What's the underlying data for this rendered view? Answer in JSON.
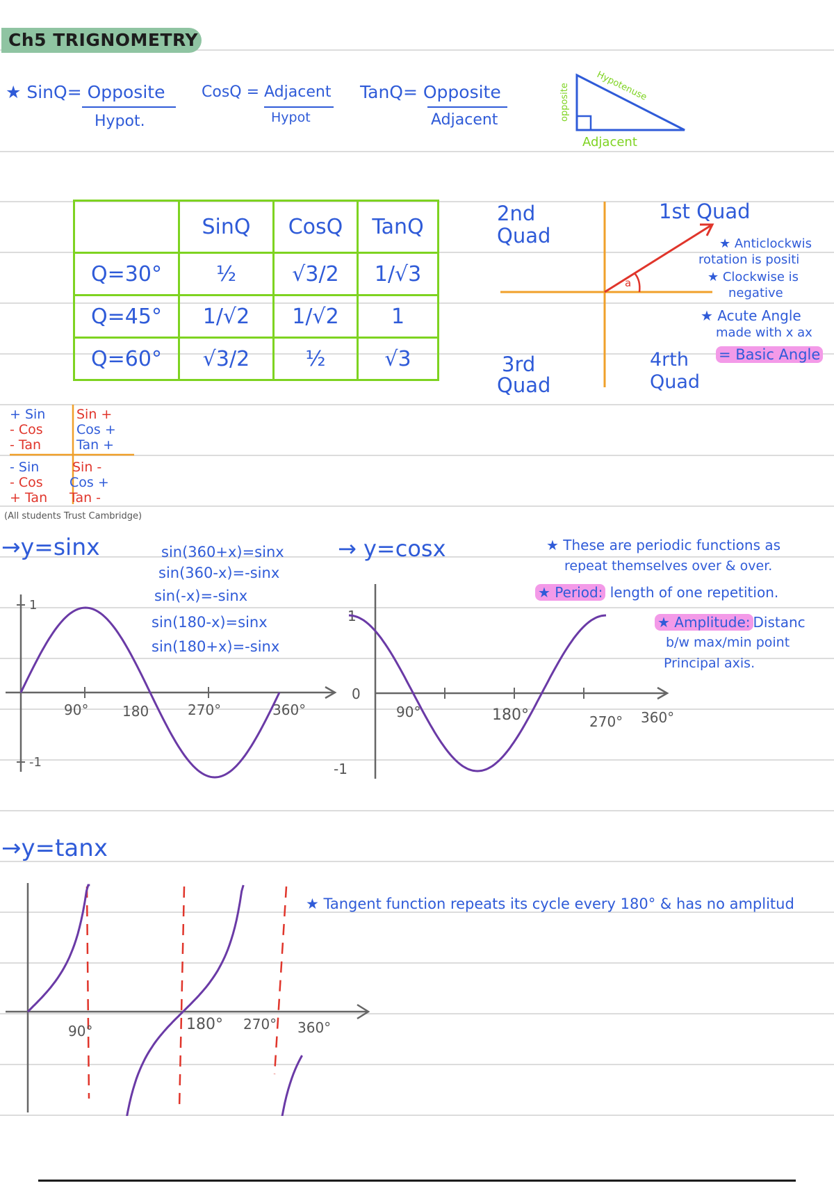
{
  "title": "Ch5 TRIGNOMETRY",
  "ratios": {
    "sin": {
      "lhs": "★ SinQ= Opposite",
      "den": "Hypot."
    },
    "cos": {
      "lhs": "CosQ = Adjacent",
      "den": "Hypot"
    },
    "tan": {
      "lhs": "TanQ= Opposite",
      "den": "Adjacent"
    }
  },
  "triangle": {
    "opposite": "opposite",
    "hypotenuse": "Hypotenuse",
    "adjacent": "Adjacent"
  },
  "table": {
    "headers": [
      "",
      "SinQ",
      "CosQ",
      "TanQ"
    ],
    "rows": [
      [
        "Q=30°",
        "½",
        "√3/2",
        "1/√3"
      ],
      [
        "Q=45°",
        "1/√2",
        "1/√2",
        "1"
      ],
      [
        "Q=60°",
        "√3/2",
        "½",
        "√3"
      ]
    ]
  },
  "quadrants": {
    "q1": "1st Quad",
    "q2a": "2nd",
    "q2b": "Quad",
    "q3a": "3rd",
    "q3b": "Quad",
    "q4a": "4rth",
    "q4b": "Quad",
    "angle": "a",
    "note1a": "★ Anticlockwis",
    "note1b": "rotation is positi",
    "note2a": "★ Clockwise is",
    "note2b": "negative",
    "note3a": "★ Acute Angle",
    "note3b": "made with x ax",
    "basic": "= Basic Angle"
  },
  "signs": {
    "q2": [
      "+ Sin",
      "- Cos",
      "- Tan"
    ],
    "q1": [
      "Sin +",
      "Cos +",
      "Tan +"
    ],
    "q3": [
      "- Sin",
      "- Cos",
      "+ Tan"
    ],
    "q4": [
      "Sin -",
      "Cos +",
      "Tan -"
    ],
    "mnemonic": "(All students Trust Cambridge)"
  },
  "sin_graph": {
    "heading": "→y=sinx",
    "identities": [
      "sin(360+x)=sinx",
      "sin(360-x)=-sinx",
      "sin(-x)=-sinx",
      "sin(180-x)=sinx",
      "sin(180+x)=-sinx"
    ],
    "y_top": "1",
    "y_bottom": "-1",
    "ticks": [
      "90°",
      "180",
      "270°",
      "360°"
    ]
  },
  "cos_graph": {
    "heading": "→ y=cosx",
    "y_top": "1",
    "y_zero": "0",
    "y_bottom": "-1",
    "ticks": [
      "90°",
      "180°",
      "270°",
      "360°"
    ]
  },
  "notes": {
    "n1a": "★ These are periodic functions as",
    "n1b": "repeat themselves over & over.",
    "n2label": "★ Period:",
    "n2text": "length of one repetition.",
    "n3label": "★ Amplitude:",
    "n3text": "Distanc",
    "n3b": "b/w max/min point",
    "n3c": "Principal axis."
  },
  "tan_graph": {
    "heading": "→y=tanx",
    "ticks": [
      "90°",
      "180°",
      "270°",
      "360°"
    ],
    "note": "★ Tangent function repeats its cycle every 180° & has no amplitud"
  },
  "colors": {
    "blue": "#2f5bd8",
    "purple": "#6a3aa6",
    "green": "#7ed321",
    "orange": "#f0a02a",
    "red": "#e0352b",
    "pink": "#f39ae8",
    "rule": "#dcdcdc"
  }
}
